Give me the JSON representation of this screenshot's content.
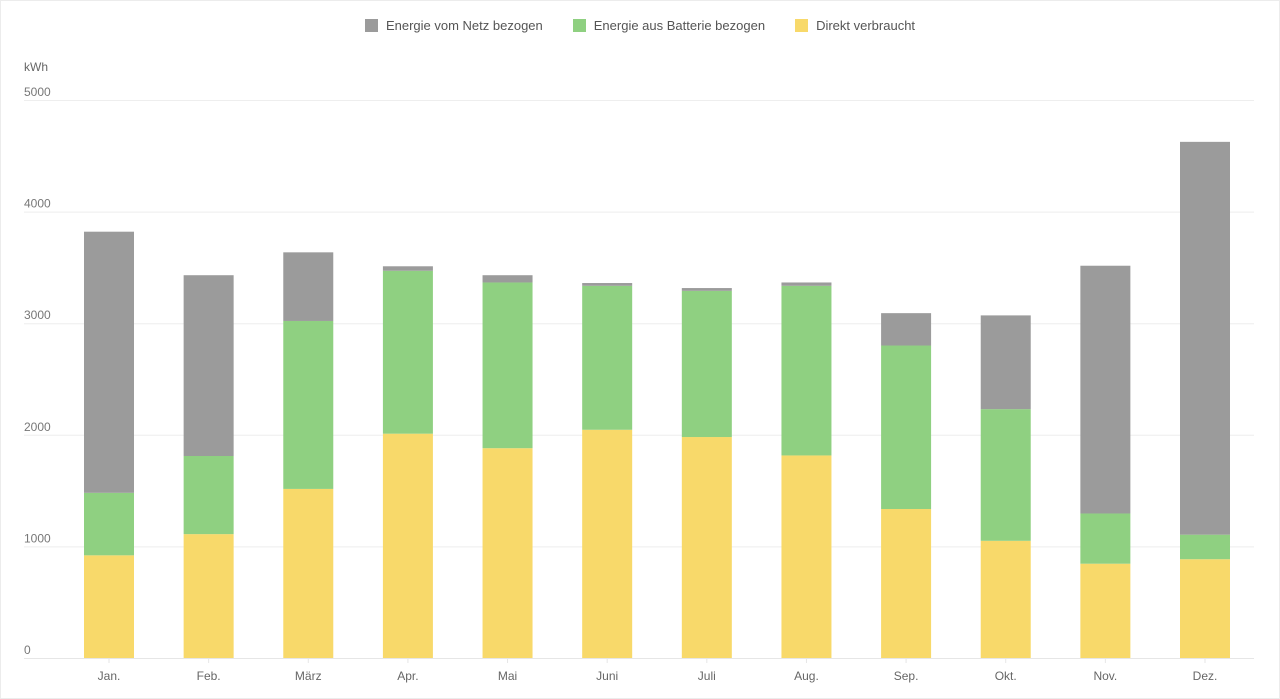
{
  "chart_data": {
    "type": "bar",
    "stacked": true,
    "ylabel": "kWh",
    "ylim": [
      0,
      5000
    ],
    "yticks": [
      "0",
      "1000",
      "2000",
      "3000",
      "4000",
      "5000"
    ],
    "grid": true,
    "legend_position": "top-center",
    "categories": [
      "Jan.",
      "Feb.",
      "März",
      "Apr.",
      "Mai",
      "Juni",
      "Juli",
      "Aug.",
      "Sep.",
      "Okt.",
      "Nov.",
      "Dez."
    ],
    "series": [
      {
        "name": "Direkt verbraucht",
        "color": "#f8d96a",
        "values": [
          920,
          1110,
          1515,
          2010,
          1880,
          2045,
          1980,
          1815,
          1335,
          1050,
          845,
          885
        ]
      },
      {
        "name": "Energie aus Batterie bezogen",
        "color": "#8fd081",
        "values": [
          560,
          700,
          1505,
          1460,
          1485,
          1290,
          1310,
          1520,
          1465,
          1180,
          450,
          220
        ]
      },
      {
        "name": "Energie vom Netz bezogen",
        "color": "#9b9b9b",
        "values": [
          2340,
          1620,
          615,
          40,
          65,
          25,
          25,
          30,
          290,
          840,
          2220,
          3520
        ]
      }
    ],
    "legend_order": [
      "Energie vom Netz bezogen",
      "Energie aus Batterie bezogen",
      "Direkt verbraucht"
    ]
  }
}
